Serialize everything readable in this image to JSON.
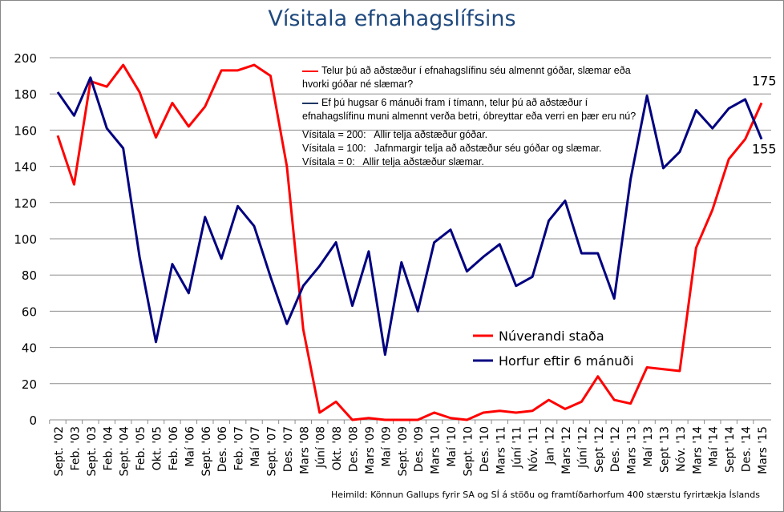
{
  "chart_data": {
    "type": "line",
    "title": "Vísitala efnahagslífsins",
    "ylim": [
      0,
      200
    ],
    "yticks": [
      "0",
      "20",
      "40",
      "60",
      "80",
      "100",
      "120",
      "140",
      "160",
      "180",
      "200"
    ],
    "categories": [
      "Sept. '02",
      "Feb. '03",
      "Sept. '03",
      "Feb. '04",
      "Sept. '04",
      "Feb. '05",
      "Okt. '05",
      "Feb. '06",
      "Maí '06",
      "Sept. '06",
      "Des. '06",
      "Feb. '07",
      "Maí '07",
      "Sept. '07",
      "Des. '07",
      "Mars '08",
      "Júní '08",
      "Okt. '08",
      "Des. '08",
      "Mars '09",
      "Maí '09",
      "Sept. '09",
      "Des. '09",
      "Mars '10",
      "Maí '10",
      "Sept. '10",
      "Des. '10",
      "Mars '11",
      "Júní '11",
      "Nóv. '11",
      "Jan '12",
      "Mars '12",
      "Júní '12",
      "Sept '12",
      "Des. '12",
      "Mars '13",
      "Maí '13",
      "Sept '13",
      "Nóv. '13",
      "Mars '14",
      "Maí '14",
      "Sept '14",
      "Des. '14",
      "Mars '15"
    ],
    "series": [
      {
        "name": "Núverandi staða",
        "color": "#ff0000",
        "end_label": "175",
        "values": [
          157,
          130,
          187,
          184,
          196,
          181,
          156,
          175,
          162,
          173,
          193,
          193,
          196,
          190,
          140,
          50,
          4,
          10,
          0,
          1,
          0,
          0,
          0,
          4,
          1,
          0,
          4,
          5,
          4,
          5,
          11,
          6,
          10,
          24,
          11,
          9,
          29,
          28,
          27,
          95,
          116,
          144,
          155,
          175
        ]
      },
      {
        "name": "Horfur eftir 6 mánuði",
        "color": "#000080",
        "end_label": "155",
        "values": [
          181,
          168,
          189,
          161,
          150,
          90,
          43,
          86,
          70,
          112,
          89,
          118,
          107,
          79,
          53,
          74,
          85,
          98,
          63,
          93,
          36,
          87,
          60,
          98,
          105,
          82,
          90,
          97,
          74,
          79,
          110,
          121,
          92,
          92,
          67,
          133,
          179,
          139,
          148,
          171,
          161,
          172,
          177,
          155
        ]
      }
    ],
    "legend_position": "bottom-right",
    "grid": true
  },
  "notes": {
    "q1": "Telur þú að aðstæður í efnahagslífinu séu almennt góðar, slæmar eða hvorki góðar né slæmar?",
    "q2": "Ef þú hugsar 6 mánuði fram í tímann, telur þú að aðstæður í efnahagslífinu muni almennt verða betri, óbreyttar eða verri en þær eru nú?",
    "l1": "Vísitala = 200:   Allir telja aðstæður góðar.",
    "l2": "Vísitala = 100:   Jafnmargir telja að aðstæður séu góðar og slæmar.",
    "l3": "Vísitala = 0:   Allir telja aðstæður slæmar."
  },
  "source": "Heimild: Könnun Gallups fyrir SA og SÍ á stöðu og framtíðarhorfum 400 stærstu fyrirtækja Íslands"
}
